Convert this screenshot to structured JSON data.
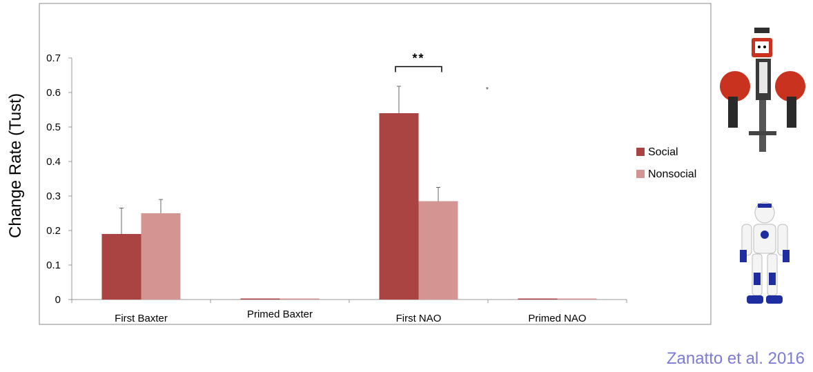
{
  "chart_data": {
    "type": "bar",
    "title": "",
    "xlabel": "",
    "ylabel": "Change Rate (Tust)",
    "ylim": [
      0,
      0.7
    ],
    "yticks": [
      "0",
      "0.1",
      "0.2",
      "0.3",
      "0.4",
      "0.5",
      "0.6",
      "0.7"
    ],
    "categories": [
      "First Baxter",
      "Primed Baxter",
      "First NAO",
      "Primed NAO"
    ],
    "series": [
      {
        "name": "Social",
        "color": "#a94442",
        "values": [
          0.19,
          0.0,
          0.54,
          0.0
        ],
        "errors": [
          0.075,
          0,
          0.078,
          0
        ]
      },
      {
        "name": "Nonsocial",
        "color": "#d49491",
        "values": [
          0.25,
          0.0,
          0.285,
          0.0
        ],
        "errors": [
          0.04,
          0,
          0.04,
          0
        ]
      }
    ],
    "annotations": [
      {
        "text": "**",
        "category": "First NAO"
      }
    ],
    "legend": "right",
    "grid": false
  },
  "citation": "Zanatto et al. 2016",
  "images": [
    {
      "name": "baxter-robot-image",
      "colors": [
        "#c8321e",
        "#2a2a2a"
      ]
    },
    {
      "name": "nao-robot-image",
      "colors": [
        "#ffffff",
        "#1e2ea0"
      ]
    }
  ]
}
